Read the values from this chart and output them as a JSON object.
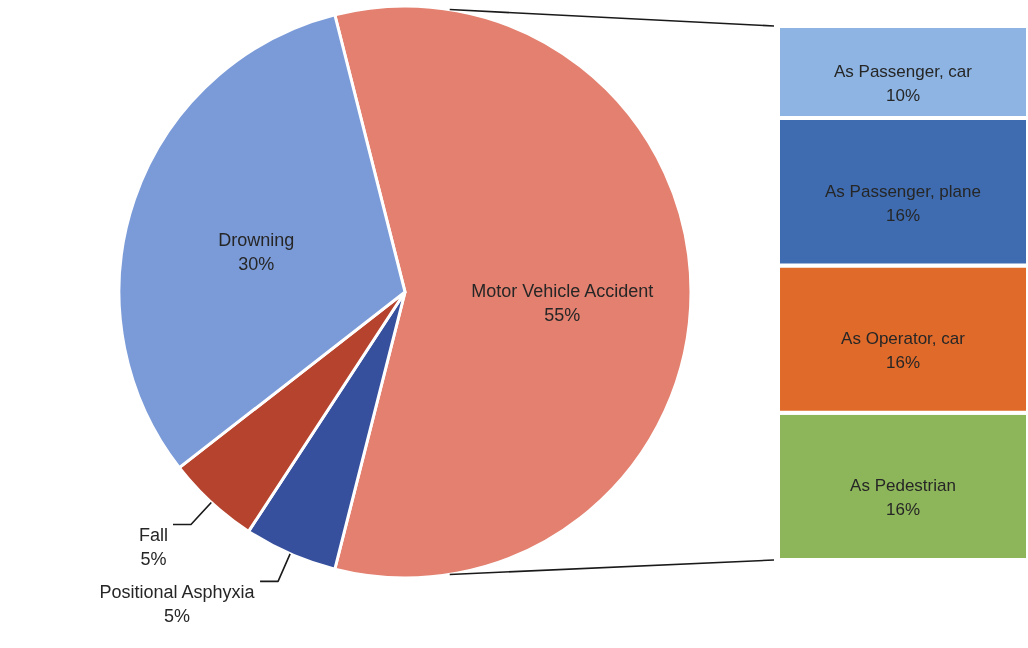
{
  "chart_data": [
    {
      "type": "pie",
      "categories": [
        "Motor Vehicle Accident",
        "Positional Asphyxia",
        "Fall",
        "Drowning"
      ],
      "values": [
        55,
        5,
        5,
        30
      ],
      "colors": [
        "#e3806f",
        "#37509e",
        "#b5432e",
        "#7b9bd8"
      ],
      "value_labels": [
        "55%",
        "5%",
        "5%",
        "30%"
      ]
    },
    {
      "type": "bar",
      "stacked": true,
      "categories": [
        null
      ],
      "series": [
        {
          "name": "As Pedestrian",
          "color": "#8db55a",
          "values": [
            16
          ],
          "value_labels": [
            "16%"
          ]
        },
        {
          "name": "As Operator, car",
          "color": "#e06a2a",
          "values": [
            16
          ],
          "value_labels": [
            "16%"
          ]
        },
        {
          "name": "As Passenger, plane",
          "color": "#3f6cb0",
          "values": [
            16
          ],
          "value_labels": [
            "16%"
          ]
        },
        {
          "name": "As Passenger, car",
          "color": "#8db4e2",
          "values": [
            10
          ],
          "value_labels": [
            "10%"
          ]
        }
      ]
    }
  ]
}
